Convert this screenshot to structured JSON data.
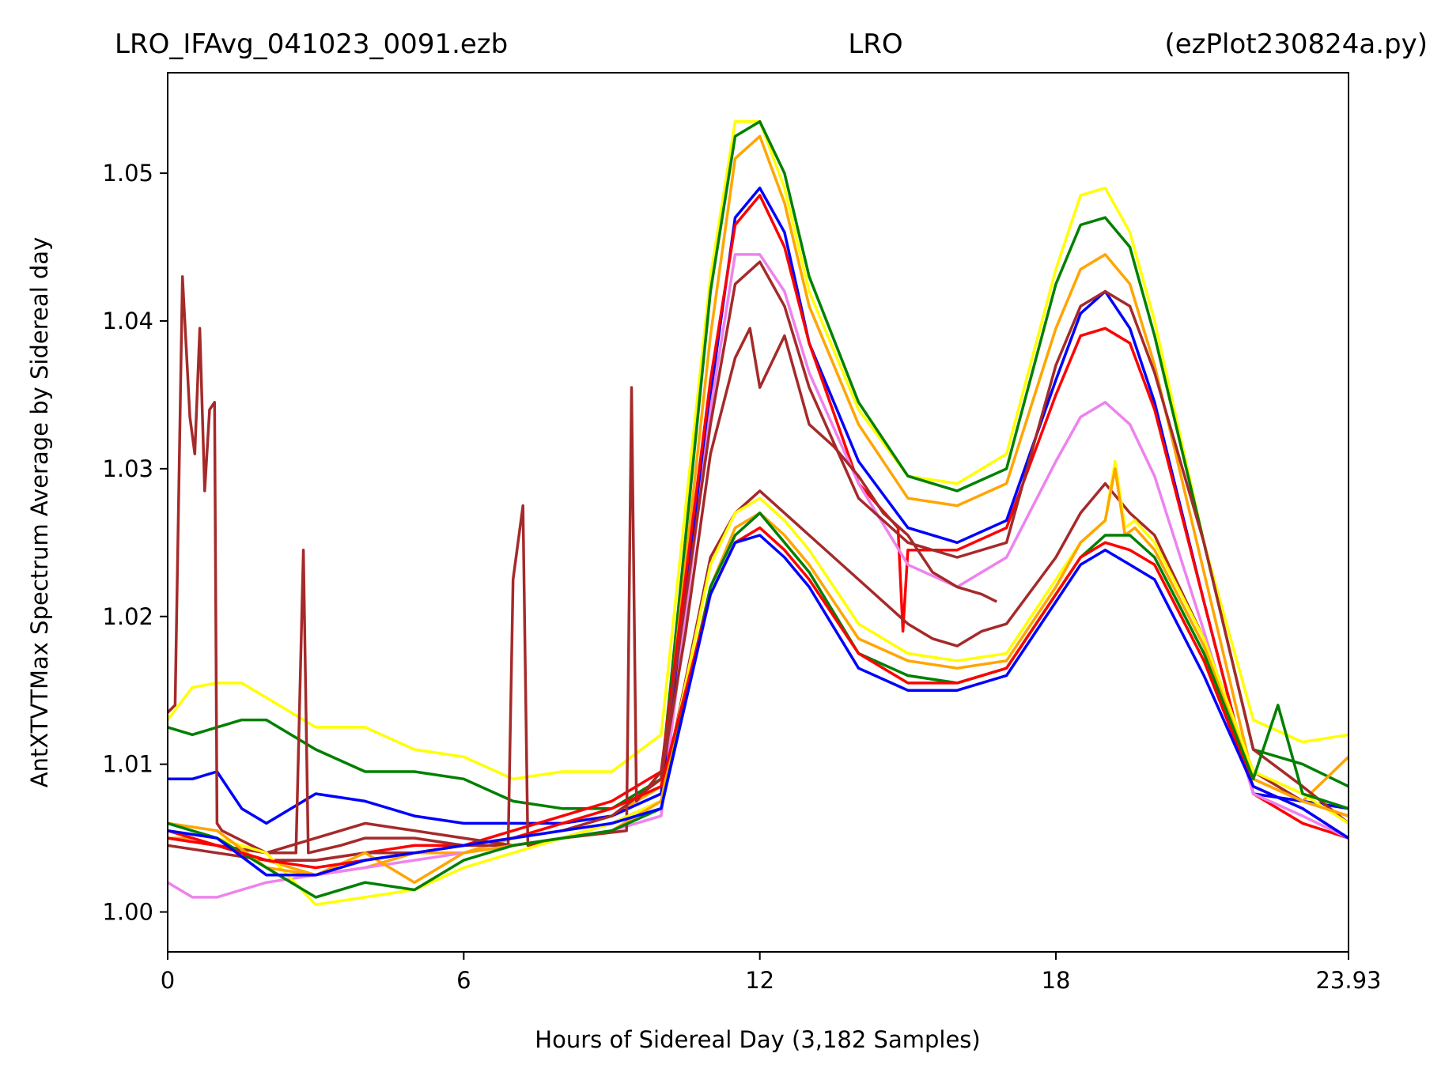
{
  "chart_data": {
    "type": "line",
    "title_parts": {
      "left": "LRO_IFAvg_041023_0091.ezb",
      "center": "LRO",
      "right": "(ezPlot230824a.py)"
    },
    "xlabel": "Hours of Sidereal Day  (3,182 Samples)",
    "ylabel": "AntXTVTMax Spectrum Average by Sidereal day",
    "xlim": [
      0,
      23.93
    ],
    "ylim": [
      0.9973,
      1.0568
    ],
    "x_ticks": [
      {
        "value": 0,
        "label": "0"
      },
      {
        "value": 6,
        "label": "6"
      },
      {
        "value": 12,
        "label": "12"
      },
      {
        "value": 18,
        "label": "18"
      },
      {
        "value": 23.93,
        "label": "23.93"
      }
    ],
    "y_ticks": [
      {
        "value": 1.0,
        "label": "1.00"
      },
      {
        "value": 1.01,
        "label": "1.01"
      },
      {
        "value": 1.02,
        "label": "1.02"
      },
      {
        "value": 1.03,
        "label": "1.03"
      },
      {
        "value": 1.04,
        "label": "1.04"
      },
      {
        "value": 1.05,
        "label": "1.05"
      }
    ],
    "grid": false,
    "legend": "none",
    "series": [
      {
        "color": "#ffff00",
        "x": [
          0,
          0.5,
          1,
          1.5,
          2,
          3,
          4,
          5,
          6,
          7,
          8,
          9,
          10,
          11,
          11.5,
          12,
          12.5,
          13,
          14,
          15,
          16,
          17,
          18,
          18.5,
          19,
          19.5,
          20,
          21,
          22,
          23,
          23.93
        ],
        "y": [
          1.013,
          1.0152,
          1.0155,
          1.0155,
          1.0145,
          1.0125,
          1.0125,
          1.011,
          1.0105,
          1.009,
          1.0095,
          1.0095,
          1.012,
          1.043,
          1.0535,
          1.0535,
          1.049,
          1.042,
          1.034,
          1.0295,
          1.029,
          1.031,
          1.0435,
          1.0485,
          1.049,
          1.046,
          1.04,
          1.025,
          1.013,
          1.0115,
          1.012
        ]
      },
      {
        "color": "#008000",
        "x": [
          0,
          0.5,
          1,
          1.5,
          2,
          3,
          4,
          5,
          6,
          7,
          8,
          9,
          10,
          11,
          11.5,
          12,
          12.5,
          13,
          14,
          15,
          16,
          17,
          18,
          18.5,
          19,
          19.5,
          20,
          21,
          22,
          23,
          23.93
        ],
        "y": [
          1.0125,
          1.012,
          1.0125,
          1.013,
          1.013,
          1.011,
          1.0095,
          1.0095,
          1.009,
          1.0075,
          1.007,
          1.007,
          1.009,
          1.042,
          1.0525,
          1.0535,
          1.05,
          1.043,
          1.0345,
          1.0295,
          1.0285,
          1.03,
          1.0425,
          1.0465,
          1.047,
          1.045,
          1.039,
          1.025,
          1.011,
          1.01,
          1.0085
        ]
      },
      {
        "color": "#ffa500",
        "x": [
          0,
          0.5,
          1,
          1.5,
          2,
          3,
          4,
          5,
          6,
          7,
          8,
          9,
          10,
          11,
          11.5,
          12,
          12.5,
          13,
          14,
          15,
          16,
          17,
          18,
          18.5,
          19,
          19.5,
          20,
          21,
          22,
          23,
          23.93
        ],
        "y": [
          1.005,
          1.005,
          1.0045,
          1.004,
          1.0035,
          1.0025,
          1.003,
          1.004,
          1.004,
          1.005,
          1.006,
          1.0065,
          1.0085,
          1.039,
          1.051,
          1.0525,
          1.048,
          1.041,
          1.033,
          1.028,
          1.0275,
          1.029,
          1.0395,
          1.0435,
          1.0445,
          1.0425,
          1.037,
          1.023,
          1.009,
          1.0075,
          1.0105
        ]
      },
      {
        "color": "#0000ff",
        "x": [
          0,
          0.5,
          1,
          1.5,
          2,
          3,
          4,
          5,
          6,
          7,
          8,
          9,
          10,
          11,
          11.5,
          12,
          12.5,
          13,
          14,
          15,
          16,
          17,
          18,
          18.5,
          19,
          19.5,
          20,
          21,
          22,
          23,
          23.93
        ],
        "y": [
          1.009,
          1.009,
          1.0095,
          1.007,
          1.006,
          1.008,
          1.0075,
          1.0065,
          1.006,
          1.006,
          1.006,
          1.0065,
          1.008,
          1.035,
          1.047,
          1.049,
          1.046,
          1.0385,
          1.0305,
          1.026,
          1.025,
          1.0265,
          1.036,
          1.0405,
          1.042,
          1.0395,
          1.0345,
          1.021,
          1.008,
          1.0075,
          1.007
        ]
      },
      {
        "color": "#ff0000",
        "x": [
          0,
          0.5,
          1,
          1.5,
          2,
          3,
          4,
          5,
          6,
          7,
          8,
          9,
          10,
          11,
          11.5,
          12,
          12.5,
          13,
          14,
          14.8,
          14.9,
          15,
          16,
          17,
          18,
          18.5,
          19,
          19.5,
          20,
          21,
          22,
          23,
          23.93
        ],
        "y": [
          1.0055,
          1.005,
          1.0045,
          1.004,
          1.0035,
          1.0035,
          1.004,
          1.0045,
          1.0045,
          1.0055,
          1.0065,
          1.0075,
          1.0095,
          1.036,
          1.0465,
          1.0485,
          1.045,
          1.0385,
          1.029,
          1.026,
          1.019,
          1.0245,
          1.0245,
          1.026,
          1.035,
          1.039,
          1.0395,
          1.0385,
          1.034,
          1.021,
          1.008,
          1.006,
          1.005
        ]
      },
      {
        "color": "#ee82ee",
        "x": [
          0,
          0.5,
          1,
          1.5,
          2,
          3,
          4,
          5,
          6,
          7,
          8,
          9,
          10,
          11,
          11.5,
          12,
          12.5,
          13,
          14,
          15,
          16,
          17,
          18,
          18.5,
          19,
          19.5,
          20,
          21,
          22,
          23,
          23.93
        ],
        "y": [
          1.002,
          1.001,
          1.001,
          1.0015,
          1.002,
          1.0025,
          1.003,
          1.0035,
          1.004,
          1.0045,
          1.005,
          1.0055,
          1.0065,
          1.034,
          1.0445,
          1.0445,
          1.042,
          1.0365,
          1.029,
          1.0235,
          1.022,
          1.024,
          1.0305,
          1.0335,
          1.0345,
          1.033,
          1.0295,
          1.019,
          1.008,
          1.0065,
          1.005
        ]
      },
      {
        "color": "#a52a2a",
        "x": [
          0,
          0.15,
          0.3,
          0.45,
          0.55,
          0.65,
          0.75,
          0.85,
          0.95,
          1.0,
          1.1,
          2,
          2.6,
          2.75,
          2.85,
          3.5,
          4,
          5,
          6,
          6.9,
          7.0,
          7.2,
          7.3,
          8,
          9.3,
          9.4,
          9.5,
          10,
          11,
          11.5,
          12,
          12.5,
          13,
          14,
          15,
          16,
          17,
          18,
          18.5,
          19,
          19.5,
          20,
          21,
          22,
          23,
          23.93
        ],
        "y": [
          1.0135,
          1.014,
          1.043,
          1.0335,
          1.031,
          1.0395,
          1.0285,
          1.034,
          1.0345,
          1.006,
          1.0055,
          1.004,
          1.004,
          1.0245,
          1.004,
          1.0045,
          1.005,
          1.005,
          1.0045,
          1.0045,
          1.0225,
          1.0275,
          1.0045,
          1.005,
          1.0055,
          1.0355,
          1.0075,
          1.0095,
          1.033,
          1.0425,
          1.044,
          1.041,
          1.0355,
          1.028,
          1.025,
          1.024,
          1.025,
          1.037,
          1.041,
          1.042,
          1.041,
          1.0365,
          1.025,
          1.011,
          1.0085,
          1.006
        ]
      },
      {
        "color": "#a52a2a",
        "x": [
          0,
          1,
          2,
          3,
          4,
          5,
          6,
          7,
          8,
          9,
          10,
          10.5,
          11,
          11.5,
          11.8,
          12,
          12.5,
          13,
          13.5,
          14,
          14.5,
          15,
          15.5,
          16,
          16.5,
          16.8
        ],
        "y": [
          1.0045,
          1.004,
          1.0035,
          1.0035,
          1.004,
          1.004,
          1.0045,
          1.005,
          1.0055,
          1.0065,
          1.009,
          1.019,
          1.031,
          1.0375,
          1.0395,
          1.0355,
          1.039,
          1.033,
          1.0315,
          1.0295,
          1.027,
          1.0255,
          1.023,
          1.022,
          1.0215,
          1.021
        ]
      },
      {
        "color": "#a52a2a",
        "x": [
          0,
          1,
          2,
          3,
          4,
          5,
          6,
          7,
          8,
          9,
          10,
          11,
          11.5,
          12,
          12.5,
          13,
          14,
          15,
          15.5,
          16,
          16.5,
          17,
          18,
          18.5,
          19,
          19.5,
          20,
          21,
          22,
          23,
          23.93
        ],
        "y": [
          1.005,
          1.0045,
          1.004,
          1.005,
          1.006,
          1.0055,
          1.005,
          1.0045,
          1.005,
          1.006,
          1.0075,
          1.024,
          1.027,
          1.0285,
          1.027,
          1.0255,
          1.0225,
          1.0195,
          1.0185,
          1.018,
          1.019,
          1.0195,
          1.024,
          1.027,
          1.029,
          1.027,
          1.0255,
          1.0185,
          1.0095,
          1.0075,
          1.0065
        ]
      },
      {
        "color": "#ffff00",
        "x": [
          0,
          1,
          2,
          3,
          4,
          5,
          6,
          7,
          8,
          9,
          10,
          11,
          11.5,
          12,
          12.5,
          13,
          14,
          15,
          16,
          17,
          18,
          18.5,
          19,
          19.2,
          19.4,
          19.6,
          20,
          21,
          22,
          23,
          23.93
        ],
        "y": [
          1.0055,
          1.005,
          1.004,
          1.0005,
          1.001,
          1.0015,
          1.003,
          1.004,
          1.005,
          1.006,
          1.0075,
          1.0235,
          1.027,
          1.028,
          1.0265,
          1.0245,
          1.0195,
          1.0175,
          1.017,
          1.0175,
          1.0225,
          1.025,
          1.0265,
          1.0305,
          1.026,
          1.0265,
          1.025,
          1.0185,
          1.0095,
          1.008,
          1.006
        ]
      },
      {
        "color": "#ffa500",
        "x": [
          0,
          1,
          2,
          3,
          4,
          5,
          6,
          7,
          8,
          9,
          10,
          11,
          11.5,
          12,
          12.5,
          13,
          14,
          15,
          16,
          17,
          18,
          18.5,
          19,
          19.2,
          19.4,
          19.6,
          20,
          21,
          22,
          23,
          23.93
        ],
        "y": [
          1.006,
          1.0055,
          1.003,
          1.0025,
          1.004,
          1.002,
          1.004,
          1.0045,
          1.005,
          1.0055,
          1.0075,
          1.022,
          1.026,
          1.027,
          1.0255,
          1.0235,
          1.0185,
          1.017,
          1.0165,
          1.017,
          1.022,
          1.025,
          1.0265,
          1.03,
          1.0255,
          1.026,
          1.0245,
          1.018,
          1.009,
          1.0075,
          1.0065
        ]
      },
      {
        "color": "#008000",
        "x": [
          0,
          1,
          2,
          3,
          4,
          5,
          6,
          7,
          8,
          9,
          10,
          11,
          11.5,
          12,
          12.5,
          13,
          14,
          15,
          16,
          17,
          18,
          18.5,
          19,
          19.5,
          20,
          21,
          22,
          22.5,
          23,
          23.93
        ],
        "y": [
          1.006,
          1.005,
          1.003,
          1.001,
          1.002,
          1.0015,
          1.0035,
          1.0045,
          1.005,
          1.0055,
          1.007,
          1.022,
          1.0255,
          1.027,
          1.025,
          1.023,
          1.0175,
          1.016,
          1.0155,
          1.0165,
          1.0215,
          1.024,
          1.0255,
          1.0255,
          1.024,
          1.0175,
          1.009,
          1.014,
          1.008,
          1.007
        ]
      },
      {
        "color": "#ff0000",
        "x": [
          0,
          1,
          2,
          3,
          4,
          5,
          6,
          7,
          8,
          9,
          10,
          11,
          11.5,
          12,
          12.5,
          13,
          14,
          15,
          16,
          17,
          18,
          18.5,
          19,
          19.5,
          20,
          21,
          22,
          23,
          23.93
        ],
        "y": [
          1.005,
          1.0045,
          1.0035,
          1.003,
          1.0035,
          1.004,
          1.0045,
          1.005,
          1.006,
          1.007,
          1.0085,
          1.0215,
          1.025,
          1.026,
          1.0245,
          1.0225,
          1.0175,
          1.0155,
          1.0155,
          1.0165,
          1.0215,
          1.024,
          1.025,
          1.0245,
          1.0235,
          1.017,
          1.0085,
          1.007,
          1.005
        ]
      },
      {
        "color": "#0000ff",
        "x": [
          0,
          1,
          2,
          3,
          4,
          5,
          6,
          7,
          8,
          9,
          10,
          11,
          11.5,
          12,
          12.5,
          13,
          14,
          15,
          16,
          17,
          18,
          18.5,
          19,
          19.5,
          20,
          21,
          22,
          23,
          23.93
        ],
        "y": [
          1.0055,
          1.005,
          1.0025,
          1.0025,
          1.0035,
          1.004,
          1.0045,
          1.005,
          1.0055,
          1.006,
          1.007,
          1.0215,
          1.025,
          1.0255,
          1.024,
          1.022,
          1.0165,
          1.015,
          1.015,
          1.016,
          1.021,
          1.0235,
          1.0245,
          1.0235,
          1.0225,
          1.016,
          1.0085,
          1.007,
          1.005
        ]
      }
    ]
  }
}
